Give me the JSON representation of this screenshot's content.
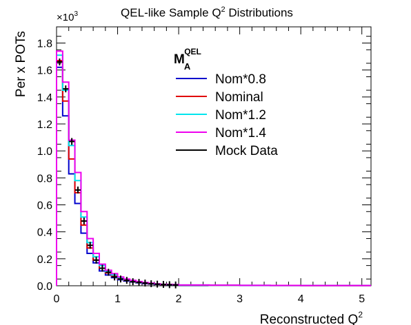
{
  "chart_data": {
    "type": "line",
    "subtype": "step-histogram",
    "title": "QEL-like Sample Q",
    "title_sup": "2",
    "title_tail": " Distributions",
    "ylabel": "Per x POTs",
    "xlabel": "Reconstructed Q",
    "xlabel_sup": "2",
    "y_multiplier": "×10",
    "y_multiplier_exp": "3",
    "xlim": [
      0,
      5.15
    ],
    "ylim": [
      0,
      1.92
    ],
    "x_ticks": [
      "0",
      "1",
      "2",
      "3",
      "4",
      "5"
    ],
    "y_ticks": [
      "0.0",
      "0.2",
      "0.4",
      "0.6",
      "0.8",
      "1.0",
      "1.2",
      "1.4",
      "1.6",
      "1.8"
    ],
    "bin_edges": [
      0,
      0.1,
      0.2,
      0.3,
      0.4,
      0.5,
      0.6,
      0.7,
      0.8,
      0.9,
      1.0,
      1.1,
      1.2,
      1.3,
      1.4,
      1.5,
      1.6,
      1.7,
      1.8,
      1.9,
      2.0,
      2.5,
      3.0,
      3.5,
      4.0,
      5.15
    ],
    "legend": {
      "title": "M",
      "title_sub": "A",
      "title_sup": "QEL",
      "placement": "top-right"
    },
    "series": [
      {
        "name": "Nom*0.8",
        "color": "#0000cc",
        "values": [
          1.62,
          1.26,
          0.83,
          0.61,
          0.39,
          0.24,
          0.17,
          0.11,
          0.08,
          0.06,
          0.045,
          0.035,
          0.028,
          0.022,
          0.016,
          0.013,
          0.01,
          0.008,
          0.007,
          0.006,
          0.004,
          0.003,
          0.002,
          0.002,
          0.0015
        ]
      },
      {
        "name": "Nominal",
        "color": "#e00000",
        "values": [
          1.67,
          1.37,
          0.94,
          0.69,
          0.45,
          0.28,
          0.19,
          0.13,
          0.095,
          0.07,
          0.052,
          0.04,
          0.032,
          0.025,
          0.019,
          0.015,
          0.012,
          0.009,
          0.008,
          0.007,
          0.005,
          0.0035,
          0.0025,
          0.002,
          0.0015
        ]
      },
      {
        "name": "Nom*1.2",
        "color": "#00e5ee",
        "values": [
          1.71,
          1.45,
          1.04,
          0.78,
          0.51,
          0.32,
          0.215,
          0.15,
          0.105,
          0.08,
          0.06,
          0.045,
          0.036,
          0.028,
          0.021,
          0.017,
          0.013,
          0.01,
          0.009,
          0.008,
          0.0055,
          0.004,
          0.003,
          0.0022,
          0.0017
        ]
      },
      {
        "name": "Nom*1.4",
        "color": "#ee00ee",
        "values": [
          1.74,
          1.51,
          1.08,
          0.84,
          0.55,
          0.35,
          0.24,
          0.16,
          0.115,
          0.09,
          0.065,
          0.05,
          0.04,
          0.031,
          0.024,
          0.019,
          0.015,
          0.011,
          0.01,
          0.009,
          0.006,
          0.0045,
          0.0033,
          0.0025,
          0.0018
        ]
      }
    ],
    "mock_data": {
      "name": "Mock Data",
      "color": "#000000",
      "x": [
        0.05,
        0.15,
        0.25,
        0.35,
        0.45,
        0.55,
        0.65,
        0.75,
        0.85,
        0.95,
        1.05,
        1.15,
        1.25,
        1.35,
        1.45,
        1.55,
        1.65,
        1.75,
        1.85,
        1.95
      ],
      "y": [
        1.66,
        1.46,
        1.07,
        0.71,
        0.48,
        0.3,
        0.19,
        0.13,
        0.1,
        0.065,
        0.05,
        0.04,
        0.03,
        0.025,
        0.02,
        0.015,
        0.012,
        0.01,
        0.008,
        0.006
      ]
    }
  }
}
